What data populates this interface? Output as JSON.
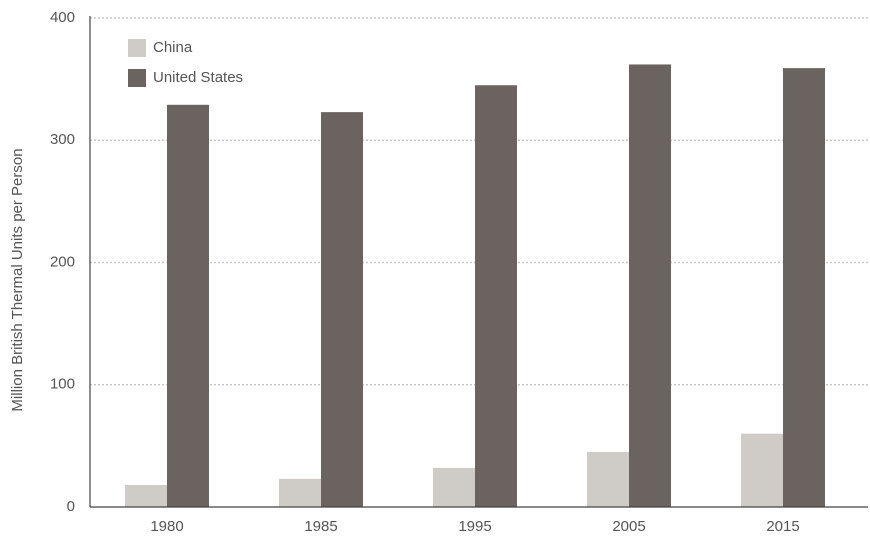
{
  "chart_data": {
    "type": "bar",
    "y_label": "Million British Thermal Units per Person",
    "categories": [
      "1980",
      "1985",
      "1995",
      "2005",
      "2015"
    ],
    "series": [
      {
        "name": "China",
        "color": "#cfcbc6",
        "values": [
          18,
          23,
          32,
          45,
          60
        ]
      },
      {
        "name": "United States",
        "color": "#6b6360",
        "values": [
          329,
          323,
          345,
          362,
          359
        ]
      }
    ],
    "ylim": [
      0,
      400
    ],
    "yticks": [
      0,
      100,
      200,
      300,
      400
    ],
    "grid": true,
    "legend": "upper left"
  }
}
